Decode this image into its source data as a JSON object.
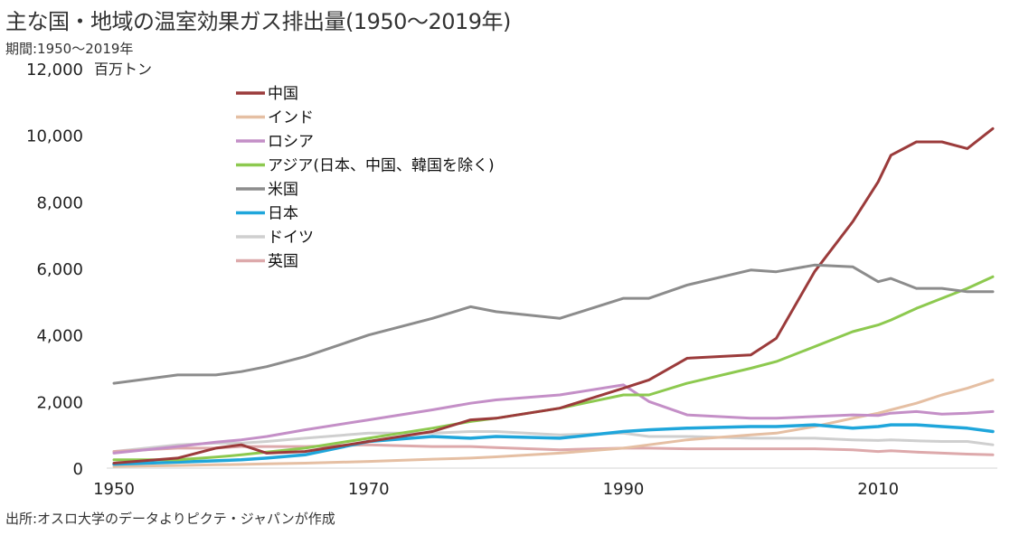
{
  "header": {
    "title": "主な国・地域の温室効果ガス排出量(1950～2019年)",
    "period": "期間:1950～2019年"
  },
  "footer": {
    "source": "出所:オスロ大学のデータよりピクテ・ジャパンが作成"
  },
  "chart_data": {
    "type": "line",
    "title": "主な国・地域の温室効果ガス排出量(1950～2019年)",
    "ylabel": "百万トン",
    "xlabel": "",
    "xlim": [
      1950,
      2019
    ],
    "ylim": [
      0,
      12000
    ],
    "x_ticks": [
      "1950",
      "1970",
      "1990",
      "2010"
    ],
    "x_tick_values": [
      1950,
      1970,
      1990,
      2010
    ],
    "y_ticks": [
      "0",
      "2,000",
      "4,000",
      "6,000",
      "8,000",
      "10,000",
      "12,000"
    ],
    "y_tick_values": [
      0,
      2000,
      4000,
      6000,
      8000,
      10000,
      12000
    ],
    "grid": false,
    "legend_position": "top-left",
    "x": [
      1950,
      1955,
      1958,
      1960,
      1962,
      1965,
      1970,
      1975,
      1978,
      1980,
      1985,
      1990,
      1992,
      1995,
      2000,
      2002,
      2005,
      2008,
      2010,
      2011,
      2013,
      2015,
      2017,
      2019
    ],
    "series": [
      {
        "name": "中国",
        "color": "#9b3b3b",
        "values": [
          150,
          300,
          600,
          700,
          450,
          500,
          800,
          1100,
          1450,
          1500,
          1800,
          2400,
          2650,
          3300,
          3400,
          3900,
          5900,
          7400,
          8600,
          9400,
          9800,
          9800,
          9600,
          10200
        ]
      },
      {
        "name": "インド",
        "color": "#e5bfa3",
        "values": [
          50,
          80,
          100,
          110,
          130,
          150,
          200,
          270,
          300,
          340,
          450,
          600,
          700,
          850,
          1000,
          1050,
          1250,
          1500,
          1650,
          1750,
          1950,
          2200,
          2400,
          2650
        ]
      },
      {
        "name": "ロシア",
        "color": "#c48fc7",
        "values": [
          450,
          650,
          780,
          850,
          950,
          1150,
          1450,
          1750,
          1950,
          2050,
          2200,
          2500,
          2000,
          1600,
          1500,
          1500,
          1550,
          1600,
          1580,
          1650,
          1700,
          1620,
          1650,
          1700
        ]
      },
      {
        "name": "アジア(日本、中国、韓国を除く)",
        "color": "#8dc94f",
        "values": [
          250,
          250,
          330,
          400,
          480,
          600,
          900,
          1200,
          1400,
          1500,
          1800,
          2200,
          2200,
          2550,
          3000,
          3200,
          3650,
          4100,
          4300,
          4450,
          4800,
          5100,
          5400,
          5750
        ]
      },
      {
        "name": "米国",
        "color": "#8c8c8c",
        "values": [
          2550,
          2800,
          2800,
          2900,
          3050,
          3350,
          4000,
          4500,
          4850,
          4700,
          4500,
          5100,
          5100,
          5500,
          5950,
          5900,
          6100,
          6050,
          5600,
          5700,
          5400,
          5400,
          5300,
          5300
        ]
      },
      {
        "name": "日本",
        "color": "#1fa6db",
        "values": [
          120,
          180,
          220,
          250,
          300,
          400,
          800,
          950,
          900,
          950,
          900,
          1100,
          1150,
          1200,
          1250,
          1250,
          1300,
          1200,
          1250,
          1300,
          1300,
          1250,
          1200,
          1100
        ]
      },
      {
        "name": "ドイツ",
        "color": "#cfcfcf",
        "values": [
          500,
          700,
          750,
          750,
          800,
          900,
          1050,
          1050,
          1100,
          1100,
          1000,
          1050,
          950,
          950,
          900,
          900,
          900,
          850,
          830,
          850,
          820,
          800,
          800,
          700
        ]
      },
      {
        "name": "英国",
        "color": "#dda9ab",
        "values": [
          500,
          600,
          600,
          650,
          650,
          650,
          700,
          650,
          650,
          620,
          550,
          600,
          600,
          580,
          580,
          580,
          580,
          550,
          500,
          520,
          480,
          450,
          420,
          400
        ]
      }
    ]
  }
}
